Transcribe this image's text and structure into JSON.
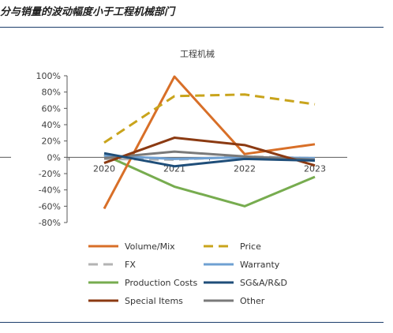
{
  "page_heading": "分与销量的波动幅度小于工程机械部门",
  "chart_data": {
    "type": "line",
    "title": "工程机械",
    "categories": [
      "2020",
      "2021",
      "2022",
      "2023"
    ],
    "ylim": [
      -80,
      100
    ],
    "yticks": [
      "100%",
      "80%",
      "60%",
      "40%",
      "20%",
      "0%",
      "-20%",
      "-40%",
      "-60%",
      "-80%"
    ],
    "ytick_values": [
      100,
      80,
      60,
      40,
      20,
      0,
      -20,
      -40,
      -60,
      -80
    ],
    "grid": false,
    "legend_position": "bottom",
    "series": [
      {
        "name": "Volume/Mix",
        "color": "#D86F28",
        "dash": "solid",
        "values": [
          -63,
          99,
          4,
          16
        ]
      },
      {
        "name": "Price",
        "color": "#C9A41C",
        "dash": "dashed",
        "values": [
          18,
          75,
          77,
          65
        ]
      },
      {
        "name": "FX",
        "color": "#B3B3B3",
        "dash": "dashed",
        "values": [
          -2,
          -3,
          1,
          -1
        ]
      },
      {
        "name": "Warranty",
        "color": "#6FA0D2",
        "dash": "solid",
        "values": [
          2,
          -2,
          0,
          -1
        ]
      },
      {
        "name": "Production Costs",
        "color": "#77AC4F",
        "dash": "solid",
        "values": [
          3,
          -36,
          -60,
          -24
        ]
      },
      {
        "name": "SG&A/R&D",
        "color": "#1F4E79",
        "dash": "solid",
        "values": [
          5,
          -11,
          -2,
          -4
        ]
      },
      {
        "name": "Special Items",
        "color": "#8B3A12",
        "dash": "solid",
        "values": [
          -7,
          24,
          15,
          -10
        ]
      },
      {
        "name": "Other",
        "color": "#7A7A7A",
        "dash": "solid",
        "values": [
          -1,
          7,
          1,
          -3
        ]
      }
    ]
  }
}
